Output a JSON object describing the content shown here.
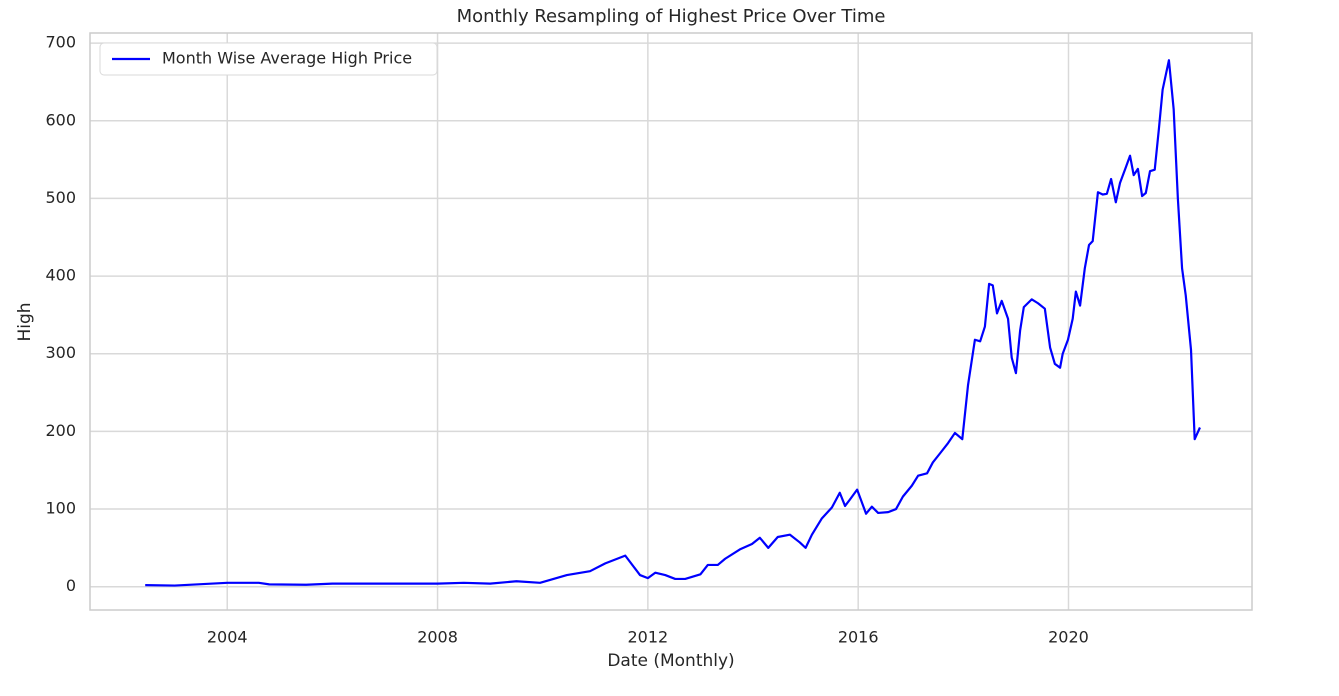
{
  "chart_data": {
    "type": "line",
    "title": "Monthly Resampling of Highest Price Over Time",
    "xlabel": "Date (Monthly)",
    "ylabel": "High",
    "x": [
      2002.44,
      2003.0,
      2004.0,
      2004.6,
      2004.8,
      2005.5,
      2006.0,
      2006.34,
      2007.86,
      2008.0,
      2008.5,
      2009.0,
      2009.5,
      2009.95,
      2010.46,
      2010.9,
      2011.19,
      2011.57,
      2011.85,
      2012.0,
      2012.14,
      2012.33,
      2012.52,
      2012.71,
      2013.0,
      2013.14,
      2013.33,
      2013.47,
      2013.75,
      2013.98,
      2014.13,
      2014.29,
      2014.47,
      2014.7,
      2014.89,
      2015.0,
      2015.12,
      2015.31,
      2015.5,
      2015.65,
      2015.75,
      2015.84,
      2015.98,
      2016.15,
      2016.26,
      2016.38,
      2016.57,
      2016.72,
      2016.85,
      2017.02,
      2017.14,
      2017.31,
      2017.42,
      2017.56,
      2017.71,
      2017.84,
      2017.98,
      2018.09,
      2018.22,
      2018.32,
      2018.41,
      2018.49,
      2018.56,
      2018.64,
      2018.73,
      2018.85,
      2018.92,
      2019.0,
      2019.08,
      2019.15,
      2019.3,
      2019.42,
      2019.55,
      2019.65,
      2019.74,
      2019.84,
      2019.89,
      2019.99,
      2020.08,
      2020.14,
      2020.22,
      2020.31,
      2020.39,
      2020.46,
      2020.56,
      2020.65,
      2020.73,
      2020.81,
      2020.9,
      2020.98,
      2021.09,
      2021.17,
      2021.24,
      2021.32,
      2021.4,
      2021.47,
      2021.55,
      2021.64,
      2021.72,
      2021.79,
      2021.91,
      2022.0,
      2022.08,
      2022.16,
      2022.23,
      2022.33,
      2022.4,
      2022.5
    ],
    "series": [
      {
        "name": "Month Wise Average High Price",
        "color": "#0000ff",
        "values": [
          2,
          1.5,
          5,
          5,
          3,
          2.5,
          4,
          4,
          4,
          4,
          5,
          4,
          7,
          5,
          15,
          20,
          30,
          40,
          15,
          11,
          18,
          15,
          10,
          10,
          16,
          28,
          28,
          36,
          48,
          55,
          63,
          50,
          64,
          67,
          57,
          50,
          67,
          88,
          102,
          121,
          104,
          112,
          125,
          94,
          103,
          95,
          96,
          100,
          116,
          130,
          143,
          146,
          160,
          172,
          185,
          198,
          190,
          260,
          318,
          316,
          335,
          390,
          388,
          352,
          368,
          345,
          295,
          275,
          330,
          360,
          370,
          365,
          358,
          308,
          287,
          282,
          300,
          318,
          345,
          380,
          362,
          410,
          440,
          445,
          508,
          505,
          506,
          525,
          495,
          520,
          540,
          555,
          530,
          538,
          503,
          507,
          535,
          537,
          590,
          640,
          678,
          615,
          500,
          410,
          375,
          305,
          190,
          205
        ]
      }
    ],
    "xlim": [
      2001.39,
      2023.49
    ],
    "ylim": [
      -30,
      713
    ],
    "xticks": [
      2004,
      2008,
      2012,
      2016,
      2020
    ],
    "yticks": [
      0,
      100,
      200,
      300,
      400,
      500,
      600,
      700
    ],
    "grid": true,
    "legend": "upper left"
  }
}
